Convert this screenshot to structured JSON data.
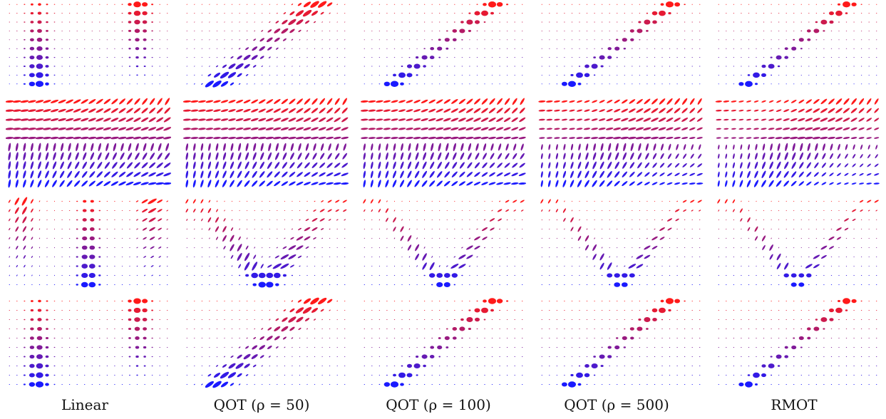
{
  "figure": {
    "columns": [
      {
        "key": "linear",
        "label": "Linear"
      },
      {
        "key": "qot50",
        "label": "QOT (ρ = 50)"
      },
      {
        "key": "qot100",
        "label": "QOT (ρ = 100)"
      },
      {
        "key": "qot500",
        "label": "QOT (ρ = 500)"
      },
      {
        "key": "rmot",
        "label": "RMOT"
      }
    ],
    "rows": [
      "columns-to-diagonal",
      "horizontal-to-vertical-field",
      "v-shape",
      "columns-to-diagonal-wide"
    ],
    "colors": {
      "start": "#1a1aff",
      "mid": "#8a1a9a",
      "end": "#ff1a1a"
    }
  }
}
